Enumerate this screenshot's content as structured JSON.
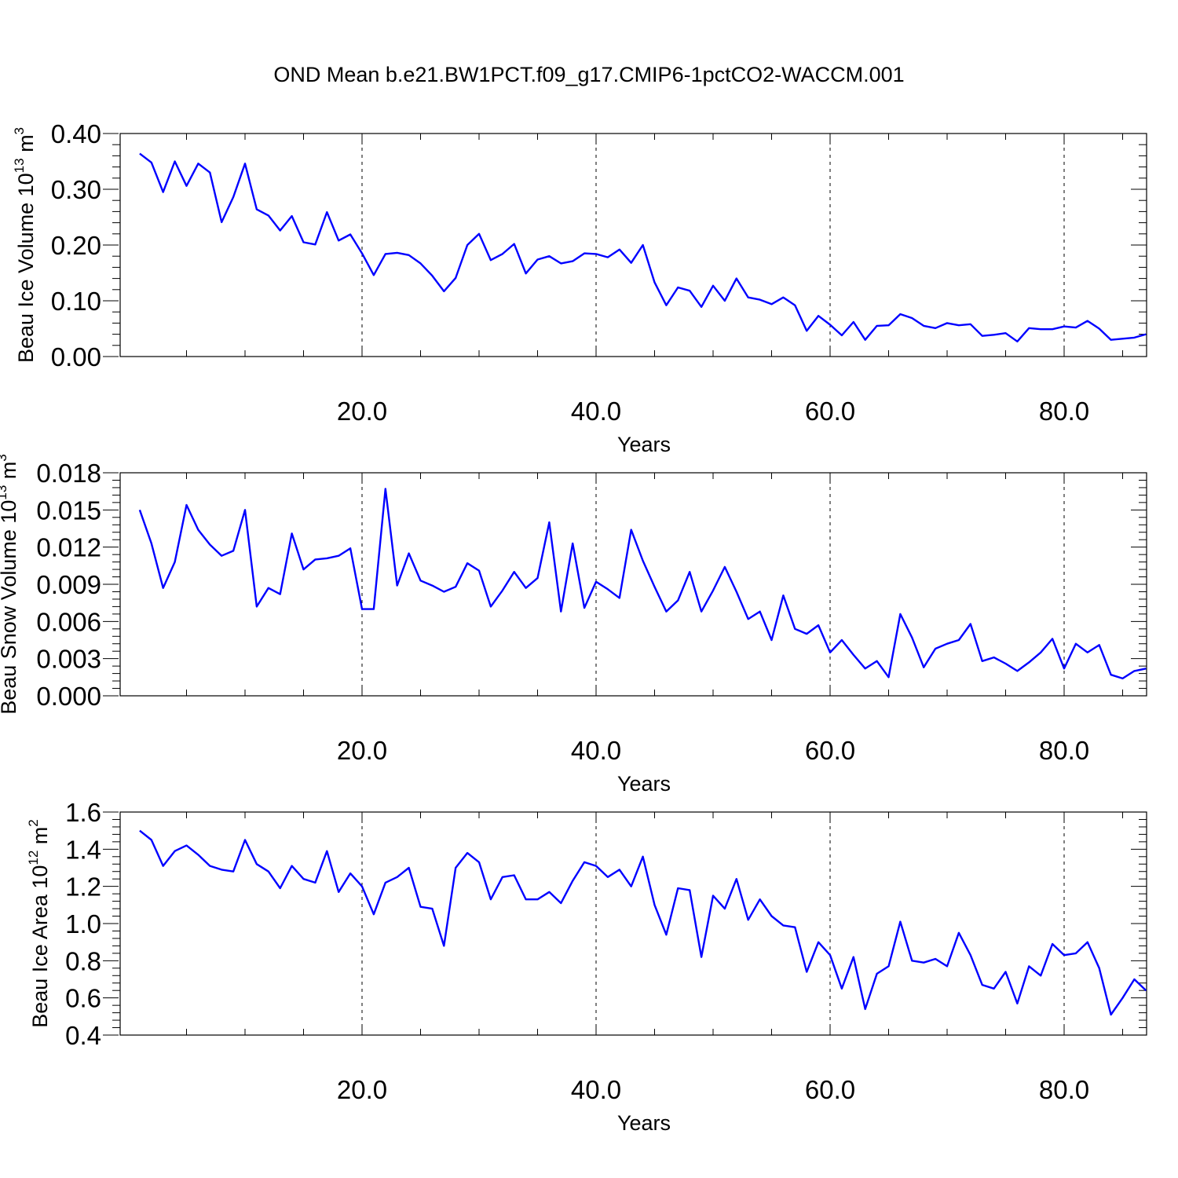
{
  "title": "OND Mean b.e21.BW1PCT.f09_g17.CMIP6-1pctCO2-WACCM.001",
  "chart_data": [
    {
      "type": "line",
      "title": "",
      "xlabel": "Years",
      "ylabel": "Beau Ice Volume 10",
      "ylabel_sup1": "13",
      "ylabel_mid": " m",
      "ylabel_sup2": "3",
      "xlim": [
        1,
        87
      ],
      "ylim": [
        0,
        0.4
      ],
      "x_ticks": [
        20,
        40,
        60,
        80
      ],
      "x_tick_labels": [
        "20.0",
        "40.0",
        "60.0",
        "80.0"
      ],
      "y_ticks": [
        0,
        0.1,
        0.2,
        0.3,
        0.4
      ],
      "y_tick_labels": [
        "0.00",
        "0.10",
        "0.20",
        "0.30",
        "0.40"
      ],
      "grid": "vertical dashed at x ticks",
      "line_color": "#0000ff",
      "series": [
        {
          "x": [
            1,
            2,
            3,
            4,
            5,
            6,
            7,
            8,
            9,
            10,
            11,
            12,
            13,
            14,
            15,
            16,
            17,
            18,
            19,
            20,
            21,
            22,
            23,
            24,
            25,
            26,
            27,
            28,
            29,
            30,
            31,
            32,
            33,
            34,
            35,
            36,
            37,
            38,
            39,
            40,
            41,
            42,
            43,
            44,
            45,
            46,
            47,
            48,
            49,
            50,
            51,
            52,
            53,
            54,
            55,
            56,
            57,
            58,
            59,
            60,
            61,
            62,
            63,
            64,
            65,
            66,
            67,
            68,
            69,
            70,
            71,
            72,
            73,
            74,
            75,
            76,
            77,
            78,
            79,
            80,
            81,
            82,
            83,
            84,
            85,
            86,
            87
          ],
          "values": [
            0.364,
            0.348,
            0.295,
            0.35,
            0.306,
            0.346,
            0.33,
            0.241,
            0.286,
            0.346,
            0.264,
            0.253,
            0.226,
            0.252,
            0.205,
            0.201,
            0.259,
            0.208,
            0.219,
            0.185,
            0.146,
            0.184,
            0.186,
            0.182,
            0.167,
            0.145,
            0.117,
            0.141,
            0.2,
            0.22,
            0.173,
            0.184,
            0.202,
            0.149,
            0.174,
            0.18,
            0.167,
            0.171,
            0.185,
            0.184,
            0.178,
            0.192,
            0.168,
            0.2,
            0.133,
            0.092,
            0.124,
            0.118,
            0.089,
            0.127,
            0.1,
            0.14,
            0.106,
            0.102,
            0.094,
            0.106,
            0.092,
            0.046,
            0.073,
            0.057,
            0.038,
            0.062,
            0.03,
            0.055,
            0.056,
            0.076,
            0.069,
            0.055,
            0.051,
            0.06,
            0.056,
            0.058,
            0.037,
            0.039,
            0.042,
            0.027,
            0.051,
            0.049,
            0.049,
            0.054,
            0.052,
            0.064,
            0.05,
            0.03,
            0.032,
            0.034,
            0.04
          ]
        }
      ]
    },
    {
      "type": "line",
      "title": "",
      "xlabel": "Years",
      "ylabel": "Beau Snow Volume 10",
      "ylabel_sup1": "13",
      "ylabel_mid": " m",
      "ylabel_sup2": "3",
      "xlim": [
        1,
        87
      ],
      "ylim": [
        0,
        0.018
      ],
      "x_ticks": [
        20,
        40,
        60,
        80
      ],
      "x_tick_labels": [
        "20.0",
        "40.0",
        "60.0",
        "80.0"
      ],
      "y_ticks": [
        0,
        0.003,
        0.006,
        0.009,
        0.012,
        0.015,
        0.018
      ],
      "y_tick_labels": [
        "0.000",
        "0.003",
        "0.006",
        "0.009",
        "0.012",
        "0.015",
        "0.018"
      ],
      "grid": "vertical dashed at x ticks",
      "line_color": "#0000ff",
      "series": [
        {
          "x": [
            1,
            2,
            3,
            4,
            5,
            6,
            7,
            8,
            9,
            10,
            11,
            12,
            13,
            14,
            15,
            16,
            17,
            18,
            19,
            20,
            21,
            22,
            23,
            24,
            25,
            26,
            27,
            28,
            29,
            30,
            31,
            32,
            33,
            34,
            35,
            36,
            37,
            38,
            39,
            40,
            41,
            42,
            43,
            44,
            45,
            46,
            47,
            48,
            49,
            50,
            51,
            52,
            53,
            54,
            55,
            56,
            57,
            58,
            59,
            60,
            61,
            62,
            63,
            64,
            65,
            66,
            67,
            68,
            69,
            70,
            71,
            72,
            73,
            74,
            75,
            76,
            77,
            78,
            79,
            80,
            81,
            82,
            83,
            84,
            85,
            86,
            87
          ],
          "values": [
            0.015,
            0.0123,
            0.0087,
            0.0108,
            0.0154,
            0.0134,
            0.0122,
            0.0113,
            0.0117,
            0.015,
            0.0072,
            0.0087,
            0.0082,
            0.0131,
            0.0102,
            0.011,
            0.0111,
            0.0113,
            0.0119,
            0.007,
            0.007,
            0.0167,
            0.0089,
            0.0115,
            0.0093,
            0.0089,
            0.0084,
            0.0088,
            0.0107,
            0.0101,
            0.0072,
            0.0085,
            0.01,
            0.0087,
            0.0095,
            0.014,
            0.0068,
            0.0123,
            0.0071,
            0.0092,
            0.0086,
            0.0079,
            0.0134,
            0.0109,
            0.0088,
            0.0068,
            0.0077,
            0.01,
            0.0068,
            0.0085,
            0.0104,
            0.0084,
            0.0062,
            0.0068,
            0.0045,
            0.0081,
            0.0054,
            0.005,
            0.0057,
            0.0035,
            0.0045,
            0.0033,
            0.0022,
            0.0028,
            0.0015,
            0.0066,
            0.0047,
            0.0023,
            0.0038,
            0.0042,
            0.0045,
            0.0058,
            0.0028,
            0.0031,
            0.0026,
            0.002,
            0.0027,
            0.0035,
            0.0046,
            0.0022,
            0.0042,
            0.0035,
            0.0041,
            0.0017,
            0.0014,
            0.002,
            0.0022
          ]
        }
      ]
    },
    {
      "type": "line",
      "title": "",
      "xlabel": "Years",
      "ylabel": "Beau Ice Area 10",
      "ylabel_sup1": "12",
      "ylabel_mid": " m",
      "ylabel_sup2": "2",
      "xlim": [
        1,
        87
      ],
      "ylim": [
        0.4,
        1.6
      ],
      "x_ticks": [
        20,
        40,
        60,
        80
      ],
      "x_tick_labels": [
        "20.0",
        "40.0",
        "60.0",
        "80.0"
      ],
      "y_ticks": [
        0.4,
        0.6,
        0.8,
        1.0,
        1.2,
        1.4,
        1.6
      ],
      "y_tick_labels": [
        "0.4",
        "0.6",
        "0.8",
        "1.0",
        "1.2",
        "1.4",
        "1.6"
      ],
      "grid": "vertical dashed at x ticks",
      "line_color": "#0000ff",
      "series": [
        {
          "x": [
            1,
            2,
            3,
            4,
            5,
            6,
            7,
            8,
            9,
            10,
            11,
            12,
            13,
            14,
            15,
            16,
            17,
            18,
            19,
            20,
            21,
            22,
            23,
            24,
            25,
            26,
            27,
            28,
            29,
            30,
            31,
            32,
            33,
            34,
            35,
            36,
            37,
            38,
            39,
            40,
            41,
            42,
            43,
            44,
            45,
            46,
            47,
            48,
            49,
            50,
            51,
            52,
            53,
            54,
            55,
            56,
            57,
            58,
            59,
            60,
            61,
            62,
            63,
            64,
            65,
            66,
            67,
            68,
            69,
            70,
            71,
            72,
            73,
            74,
            75,
            76,
            77,
            78,
            79,
            80,
            81,
            82,
            83,
            84,
            85,
            86,
            87
          ],
          "values": [
            1.5,
            1.45,
            1.31,
            1.39,
            1.42,
            1.37,
            1.31,
            1.29,
            1.28,
            1.45,
            1.32,
            1.28,
            1.19,
            1.31,
            1.24,
            1.22,
            1.39,
            1.17,
            1.27,
            1.2,
            1.05,
            1.22,
            1.25,
            1.3,
            1.09,
            1.08,
            0.88,
            1.3,
            1.38,
            1.33,
            1.13,
            1.25,
            1.26,
            1.13,
            1.13,
            1.17,
            1.11,
            1.23,
            1.33,
            1.31,
            1.25,
            1.29,
            1.2,
            1.36,
            1.1,
            0.94,
            1.19,
            1.18,
            0.82,
            1.15,
            1.08,
            1.24,
            1.02,
            1.13,
            1.04,
            0.99,
            0.98,
            0.74,
            0.9,
            0.83,
            0.65,
            0.82,
            0.54,
            0.73,
            0.77,
            1.01,
            0.8,
            0.79,
            0.81,
            0.77,
            0.95,
            0.83,
            0.67,
            0.65,
            0.74,
            0.57,
            0.77,
            0.72,
            0.89,
            0.83,
            0.84,
            0.9,
            0.76,
            0.51,
            0.6,
            0.7,
            0.64
          ]
        }
      ]
    }
  ]
}
